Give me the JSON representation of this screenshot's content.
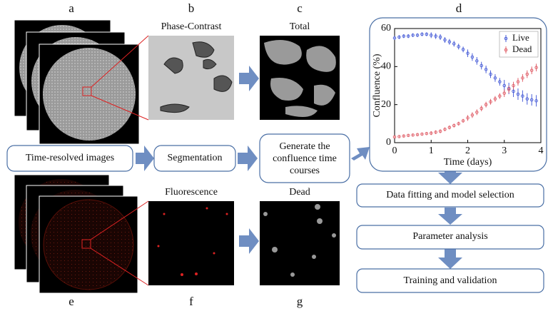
{
  "panel_labels": {
    "a": "a",
    "b": "b",
    "c": "c",
    "d": "d",
    "e": "e",
    "f": "f",
    "g": "g"
  },
  "image_titles": {
    "phase_contrast": "Phase-Contrast",
    "total": "Total",
    "fluorescence": "Fluorescence",
    "dead": "Dead"
  },
  "flow_boxes": [
    "Time-resolved images",
    "Segmentation",
    [
      "Generate the",
      "confluence time",
      "courses"
    ]
  ],
  "pipeline_steps": [
    "Data fitting and model selection",
    "Parameter analysis",
    "Training and validation"
  ],
  "chart_data": {
    "type": "line",
    "x_label": "Time (days)",
    "y_label": "Confluence (%)",
    "x": [
      0,
      0.125,
      0.25,
      0.375,
      0.5,
      0.625,
      0.75,
      0.875,
      1,
      1.125,
      1.25,
      1.375,
      1.5,
      1.625,
      1.75,
      1.875,
      2,
      2.125,
      2.25,
      2.375,
      2.5,
      2.625,
      2.75,
      2.875,
      3,
      3.125,
      3.25,
      3.375,
      3.5,
      3.625,
      3.75,
      3.875
    ],
    "series": [
      {
        "name": "Live",
        "color": "#4a5fd8",
        "values": [
          55,
          55.5,
          56,
          56,
          56.5,
          56.5,
          57,
          57,
          56.5,
          56,
          55.5,
          54,
          53,
          52,
          50.5,
          49,
          47,
          45,
          43,
          40.5,
          38.5,
          36,
          34,
          32,
          30,
          28.5,
          27,
          25.5,
          24.5,
          23,
          22.5,
          22
        ],
        "errors": [
          1,
          1,
          1,
          1,
          1,
          1,
          1,
          1,
          1.5,
          1.5,
          1.5,
          1.5,
          1.5,
          1.5,
          1.5,
          1.5,
          2,
          2,
          2,
          2,
          2,
          2,
          2,
          2,
          3,
          3,
          3,
          3,
          3,
          3,
          3,
          3
        ]
      },
      {
        "name": "Dead",
        "color": "#e0606a",
        "values": [
          3,
          3.2,
          3.5,
          3.8,
          4,
          4.2,
          4.5,
          4.8,
          5,
          5.5,
          6,
          7,
          8,
          9,
          10,
          11.5,
          13,
          14.5,
          16,
          18,
          20,
          21.5,
          23,
          24.5,
          26,
          28,
          30,
          32,
          34,
          36,
          38,
          39.5
        ],
        "errors": [
          0.5,
          0.5,
          0.5,
          0.5,
          0.5,
          0.5,
          0.5,
          0.5,
          1,
          1,
          1,
          1,
          1,
          1,
          1,
          1,
          1.5,
          1.5,
          1.5,
          1.5,
          1.5,
          1.5,
          1.5,
          1.5,
          2,
          2,
          2,
          2,
          2,
          2,
          2,
          2
        ]
      }
    ],
    "xlim": [
      0,
      4
    ],
    "xticks": [
      0,
      1,
      2,
      3,
      4
    ],
    "ylim": [
      0,
      60
    ],
    "yticks": [
      0,
      20,
      40,
      60
    ],
    "legend": "upper right"
  }
}
